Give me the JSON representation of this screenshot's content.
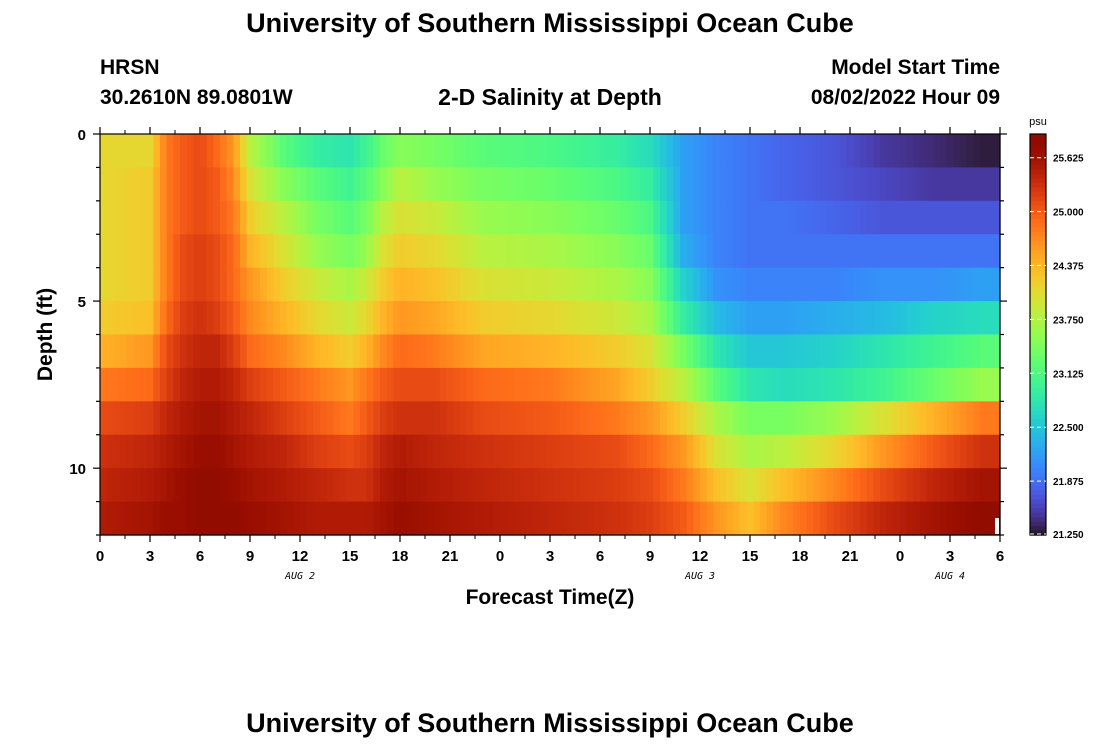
{
  "page": {
    "title": "University of Southern Mississippi Ocean Cube",
    "title_repeat": "University of Southern Mississippi Ocean Cube",
    "station": "HRSN",
    "coordinates": "30.2610N  89.0801W",
    "subtitle": "2-D Salinity at Depth",
    "model_start_label": "Model Start Time",
    "model_start_value": "08/02/2022 Hour 09"
  },
  "chart_data": {
    "type": "heatmap",
    "title": "2-D Salinity at Depth",
    "xlabel": "Forecast Time(Z)",
    "ylabel": "Depth (ft)",
    "x_range_hours": [
      0,
      54
    ],
    "y_range_ft": [
      0,
      12
    ],
    "y_direction": "depth increases downward",
    "x_ticks": [
      "0",
      "3",
      "6",
      "9",
      "12",
      "15",
      "18",
      "21",
      "0",
      "3",
      "6",
      "9",
      "12",
      "15",
      "18",
      "21",
      "0",
      "3",
      "6"
    ],
    "y_ticks": [
      "0",
      "5",
      "10"
    ],
    "date_labels": [
      {
        "text": "AUG 2",
        "hour": 12
      },
      {
        "text": "AUG 3",
        "hour": 36
      },
      {
        "text": "AUG 4",
        "hour": 51
      }
    ],
    "colorbar": {
      "unit": "psu",
      "min": 21.25,
      "max": 25.9,
      "tick_labels": [
        "25.625",
        "25.000",
        "24.375",
        "23.750",
        "23.125",
        "22.500",
        "21.875",
        "21.250"
      ],
      "tick_values": [
        25.625,
        25.0,
        24.375,
        23.75,
        23.125,
        22.5,
        21.875,
        21.25
      ],
      "colormap": "turbo"
    },
    "depth_levels_ft": [
      0.5,
      1.5,
      2.5,
      3.5,
      4.5,
      5.5,
      6.5,
      7.5,
      8.5,
      9.5,
      10.5,
      11.5
    ],
    "time_keyframes_hours": [
      0,
      3,
      4,
      5,
      6,
      7,
      8,
      9,
      11,
      13,
      15,
      16,
      17,
      18,
      20,
      23,
      27,
      31,
      33,
      35,
      37,
      39,
      41,
      44,
      47,
      50,
      53,
      54
    ],
    "salinity_psu": [
      [
        24.1,
        24.1,
        24.8,
        25.0,
        25.1,
        24.9,
        24.6,
        23.8,
        23.2,
        22.9,
        22.8,
        23.0,
        23.3,
        23.5,
        23.4,
        23.2,
        23.1,
        22.9,
        22.7,
        22.2,
        22.0,
        21.9,
        21.8,
        21.7,
        21.5,
        21.4,
        21.3,
        21.3
      ],
      [
        24.1,
        24.2,
        24.8,
        25.0,
        25.1,
        25.0,
        24.7,
        24.0,
        23.5,
        23.2,
        23.0,
        23.2,
        23.5,
        23.8,
        23.6,
        23.4,
        23.3,
        23.1,
        22.9,
        22.2,
        22.0,
        21.9,
        21.8,
        21.7,
        21.6,
        21.5,
        21.5,
        21.5
      ],
      [
        24.1,
        24.2,
        24.8,
        25.0,
        25.1,
        25.0,
        24.8,
        24.2,
        23.8,
        23.4,
        23.2,
        23.4,
        23.8,
        24.0,
        23.9,
        23.6,
        23.5,
        23.3,
        23.1,
        22.2,
        22.0,
        21.9,
        21.9,
        21.8,
        21.7,
        21.7,
        21.7,
        21.7
      ],
      [
        24.1,
        24.2,
        24.8,
        25.1,
        25.2,
        25.1,
        24.9,
        24.4,
        24.0,
        23.6,
        23.4,
        23.6,
        24.0,
        24.2,
        24.1,
        23.8,
        23.7,
        23.5,
        23.3,
        22.3,
        22.0,
        21.9,
        21.9,
        21.9,
        21.9,
        21.9,
        21.9,
        21.9
      ],
      [
        24.1,
        24.2,
        24.8,
        25.1,
        25.2,
        25.1,
        24.9,
        24.6,
        24.2,
        23.9,
        23.7,
        23.9,
        24.2,
        24.4,
        24.3,
        24.0,
        23.9,
        23.7,
        23.5,
        22.6,
        22.1,
        22.0,
        22.0,
        22.0,
        22.1,
        22.1,
        22.2,
        22.2
      ],
      [
        24.2,
        24.3,
        24.9,
        25.2,
        25.3,
        25.2,
        25.0,
        24.7,
        24.4,
        24.1,
        23.9,
        24.1,
        24.4,
        24.6,
        24.5,
        24.2,
        24.1,
        23.9,
        23.7,
        22.9,
        22.4,
        22.2,
        22.2,
        22.3,
        22.4,
        22.6,
        22.7,
        22.7
      ],
      [
        24.4,
        24.6,
        25.1,
        25.3,
        25.4,
        25.4,
        25.2,
        24.9,
        24.7,
        24.4,
        24.2,
        24.4,
        24.7,
        24.9,
        24.8,
        24.5,
        24.4,
        24.2,
        24.0,
        23.4,
        22.8,
        22.5,
        22.5,
        22.6,
        22.8,
        23.0,
        23.2,
        23.2
      ],
      [
        24.8,
        24.9,
        25.2,
        25.4,
        25.5,
        25.5,
        25.4,
        25.2,
        25.0,
        24.8,
        24.6,
        24.8,
        25.0,
        25.1,
        25.1,
        24.9,
        24.8,
        24.5,
        24.2,
        23.8,
        23.2,
        22.8,
        22.7,
        22.8,
        23.0,
        23.3,
        23.6,
        23.6
      ],
      [
        25.1,
        25.2,
        25.4,
        25.5,
        25.6,
        25.6,
        25.5,
        25.4,
        25.2,
        25.0,
        24.8,
        25.0,
        25.2,
        25.3,
        25.3,
        25.1,
        25.0,
        24.8,
        24.6,
        24.2,
        23.7,
        23.4,
        23.4,
        23.6,
        24.0,
        24.4,
        24.8,
        24.8
      ],
      [
        25.3,
        25.4,
        25.5,
        25.6,
        25.7,
        25.7,
        25.6,
        25.5,
        25.4,
        25.2,
        25.1,
        25.2,
        25.4,
        25.5,
        25.4,
        25.3,
        25.2,
        25.1,
        24.9,
        24.6,
        24.0,
        23.7,
        23.8,
        24.1,
        24.6,
        25.0,
        25.3,
        25.3
      ],
      [
        25.4,
        25.5,
        25.6,
        25.7,
        25.8,
        25.8,
        25.7,
        25.6,
        25.5,
        25.4,
        25.3,
        25.3,
        25.5,
        25.6,
        25.5,
        25.4,
        25.3,
        25.2,
        25.1,
        24.8,
        24.3,
        24.0,
        24.3,
        24.7,
        25.1,
        25.4,
        25.6,
        25.6
      ],
      [
        25.5,
        25.6,
        25.7,
        25.7,
        25.8,
        25.8,
        25.8,
        25.7,
        25.6,
        25.5,
        25.5,
        25.5,
        25.6,
        25.7,
        25.6,
        25.5,
        25.4,
        25.3,
        25.2,
        25.0,
        24.6,
        24.3,
        24.7,
        25.1,
        25.4,
        25.6,
        25.8,
        25.8
      ]
    ]
  }
}
